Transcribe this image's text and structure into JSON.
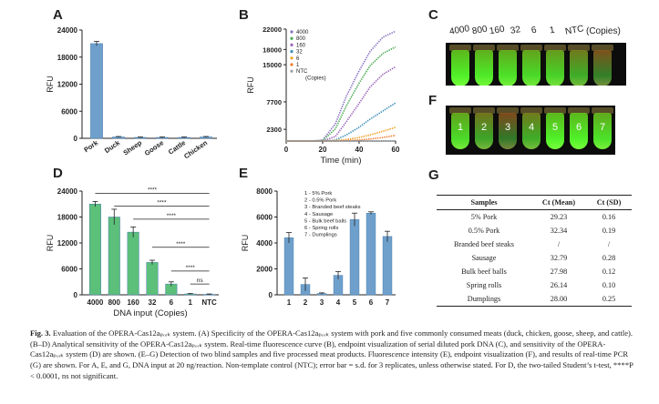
{
  "panels": {
    "a": {
      "letter": "A"
    },
    "b": {
      "letter": "B"
    },
    "c": {
      "letter": "C"
    },
    "d": {
      "letter": "D"
    },
    "e": {
      "letter": "E"
    },
    "f": {
      "letter": "F"
    },
    "g": {
      "letter": "G"
    }
  },
  "panel_c": {
    "labels": [
      "4000",
      "800",
      "160",
      "32",
      "6",
      "1",
      "NTC"
    ],
    "unit": "(Copies)",
    "tube_intensity": [
      1.0,
      0.95,
      0.9,
      0.85,
      0.8,
      0.55,
      0.25
    ]
  },
  "panel_f": {
    "numbers": [
      "1",
      "2",
      "3",
      "4",
      "5",
      "6",
      "7"
    ],
    "tube_intensity": [
      0.85,
      0.5,
      0.2,
      0.55,
      1.0,
      1.0,
      0.9
    ]
  },
  "chart_data": [
    {
      "id": "A",
      "type": "bar",
      "categories": [
        "Pork",
        "Duck",
        "Sheep",
        "Goose",
        "Cattle",
        "Chicken"
      ],
      "values": [
        21000,
        300,
        200,
        200,
        200,
        300
      ],
      "errors": [
        500,
        100,
        100,
        100,
        100,
        100
      ],
      "ylabel": "RFU",
      "ylim": [
        0,
        24000
      ],
      "yticks": [
        0,
        6000,
        12000,
        18000,
        24000
      ],
      "color": "#6fa0cc"
    },
    {
      "id": "B",
      "type": "line",
      "xlabel": "Time (min)",
      "ylabel": "RFU",
      "xlim": [
        0,
        60
      ],
      "ylim": [
        0,
        22000
      ],
      "xticks": [
        0,
        20,
        40,
        60
      ],
      "yticks": [
        2300,
        7700,
        15000,
        18000,
        22000
      ],
      "legend_title": "(Copies)",
      "series": [
        {
          "name": "4000",
          "color": "#8a72c2",
          "values": [
            0,
            0,
            0,
            200,
            3400,
            8800,
            13800,
            17600,
            20400,
            21600
          ]
        },
        {
          "name": "800",
          "color": "#4aaa52",
          "values": [
            0,
            0,
            0,
            100,
            2400,
            6900,
            11400,
            14800,
            17200,
            18500
          ]
        },
        {
          "name": "160",
          "color": "#9b63b8",
          "values": [
            0,
            0,
            0,
            0,
            900,
            3800,
            7400,
            10600,
            13100,
            14600
          ]
        },
        {
          "name": "32",
          "color": "#3a8fb8",
          "values": [
            0,
            0,
            0,
            0,
            200,
            1200,
            2700,
            4300,
            5900,
            7500
          ]
        },
        {
          "name": "6",
          "color": "#f0a020",
          "values": [
            0,
            0,
            0,
            0,
            100,
            300,
            700,
            1200,
            1900,
            2700
          ]
        },
        {
          "name": "1",
          "color": "#f07a30",
          "values": [
            0,
            0,
            0,
            0,
            0,
            100,
            200,
            400,
            700,
            1100
          ]
        },
        {
          "name": "NTC",
          "color": "#9aa0a6",
          "values": [
            0,
            0,
            0,
            0,
            0,
            0,
            0,
            0,
            0,
            0
          ]
        }
      ],
      "x": [
        0,
        7,
        14,
        20,
        27,
        33,
        40,
        46,
        53,
        60
      ]
    },
    {
      "id": "D",
      "type": "bar",
      "categories": [
        "4000",
        "800",
        "160",
        "32",
        "6",
        "1",
        "NTC"
      ],
      "values": [
        21000,
        18000,
        14500,
        7500,
        2500,
        200,
        100
      ],
      "errors": [
        600,
        1800,
        1200,
        500,
        500,
        100,
        100
      ],
      "xlabel": "DNA input (Copies)",
      "ylabel": "RFU",
      "ylim": [
        0,
        24000
      ],
      "yticks": [
        0,
        6000,
        12000,
        18000,
        24000
      ],
      "color": "#5cbf7a",
      "significance": [
        {
          "label": "****",
          "from": 0,
          "to": 6,
          "y": 23500
        },
        {
          "label": "****",
          "from": 1,
          "to": 6,
          "y": 20500
        },
        {
          "label": "****",
          "from": 2,
          "to": 6,
          "y": 17500
        },
        {
          "label": "****",
          "from": 3,
          "to": 6,
          "y": 11000
        },
        {
          "label": "****",
          "from": 4,
          "to": 6,
          "y": 5500
        },
        {
          "label": "ns",
          "from": 5,
          "to": 6,
          "y": 2500
        }
      ]
    },
    {
      "id": "E",
      "type": "bar",
      "categories": [
        "1",
        "2",
        "3",
        "4",
        "5",
        "6",
        "7"
      ],
      "values": [
        4400,
        800,
        100,
        1500,
        5800,
        6300,
        4500
      ],
      "errors": [
        400,
        500,
        50,
        300,
        500,
        100,
        400
      ],
      "ylabel": "RFU",
      "ylim": [
        0,
        8000
      ],
      "yticks": [
        0,
        2000,
        4000,
        6000,
        8000
      ],
      "color": "#6fa0cc",
      "legend": [
        "1 - 5% Pork",
        "2 - 0.5% Pork",
        "3 - Branded beef steaks",
        "4 - Sausage",
        "5 - Bulk beef balls",
        "6 - Spring rolls",
        "7 - Dumplings"
      ]
    }
  ],
  "table_g": {
    "headers": [
      "Samples",
      "Ct (Mean)",
      "Ct (SD)"
    ],
    "rows": [
      [
        "5% Pork",
        "29.23",
        "0.16"
      ],
      [
        "0.5% Pork",
        "32.34",
        "0.19"
      ],
      [
        "Branded beef steaks",
        "/",
        "/"
      ],
      [
        "Sausage",
        "32.79",
        "0.28"
      ],
      [
        "Bulk beef balls",
        "27.98",
        "0.12"
      ],
      [
        "Spring rolls",
        "26.14",
        "0.10"
      ],
      [
        "Dumplings",
        "28.00",
        "0.25"
      ]
    ]
  },
  "caption": {
    "fig_label": "Fig. 3.",
    "text": "Evaluation of the OPERA-Cas12aₚₒᵣₖ system. (A) Specificity of the OPERA-Cas12aₚₒᵣₖ system with pork and five commonly consumed meats (duck, chicken, goose, sheep, and cattle). (B–D) Analytical sensitivity of the OPERA-Cas12aₚₒᵣₖ system. Real-time fluorescence curve (B), endpoint visualization of serial diluted pork DNA (C), and sensitivity of the OPERA-Cas12aₚₒᵣₖ system (D) are shown. (E–G) Detection of two blind samples and five processed meat products. Fluorescence intensity (E), endpoint visualization (F), and results of real-time PCR (G) are shown. For A, E, and G, DNA input at 20 ng/reaction. Non-template control (NTC); error bar = s.d. for 3 replicates, unless otherwise stated. For D, the two-tailed Student’s t-test, ****P < 0.0001, ns not significant."
  }
}
